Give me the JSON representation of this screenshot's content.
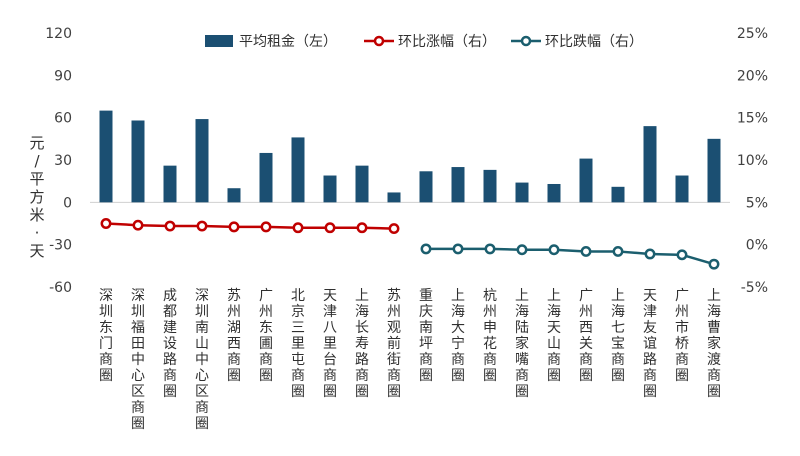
{
  "chart_data": {
    "type": "bar",
    "ylabel": "元/平方米·天",
    "categories": [
      "深圳东门商圈",
      "深圳福田中心区商圈",
      "成都建设路商圈",
      "深圳南山中心区商圈",
      "苏州湖西商圈",
      "广州东圃商圈",
      "北京三里屯商圈",
      "天津八里台商圈",
      "上海长寿路商圈",
      "苏州观前街商圈",
      "重庆南坪商圈",
      "上海大宁商圈",
      "杭州申花商圈",
      "上海陆家嘴商圈",
      "上海天山商圈",
      "广州西关商圈",
      "上海七宝商圈",
      "天津友谊路商圈",
      "广州市桥商圈",
      "上海曹家渡商圈"
    ],
    "series": [
      {
        "name": "平均租金（左）",
        "type": "bar",
        "color": "#1b4f72",
        "values": [
          65,
          58,
          26,
          59,
          10,
          35,
          46,
          19,
          26,
          7,
          22,
          25,
          23,
          14,
          13,
          31,
          11,
          54,
          19,
          45
        ]
      },
      {
        "name": "环比涨幅（右）",
        "type": "line",
        "color": "#c00000",
        "values": [
          2.5,
          2.3,
          2.2,
          2.2,
          2.1,
          2.1,
          2.0,
          2.0,
          2.0,
          1.9,
          null,
          null,
          null,
          null,
          null,
          null,
          null,
          null,
          null,
          null
        ]
      },
      {
        "name": "环比跌幅（右）",
        "type": "line",
        "color": "#1b5e6e",
        "values": [
          null,
          null,
          null,
          null,
          null,
          null,
          null,
          null,
          null,
          null,
          -0.5,
          -0.5,
          -0.5,
          -0.6,
          -0.6,
          -0.8,
          -0.8,
          -1.1,
          -1.2,
          -2.3
        ]
      }
    ],
    "left_axis": {
      "min": -60,
      "max": 120,
      "ticks": [
        "-60",
        "-30",
        "0",
        "30",
        "60",
        "90",
        "120"
      ]
    },
    "right_axis": {
      "min": -5,
      "max": 25,
      "ticks": [
        "-5%",
        "0%",
        "5%",
        "10%",
        "15%",
        "20%",
        "25%"
      ]
    },
    "legend_position": "top"
  }
}
